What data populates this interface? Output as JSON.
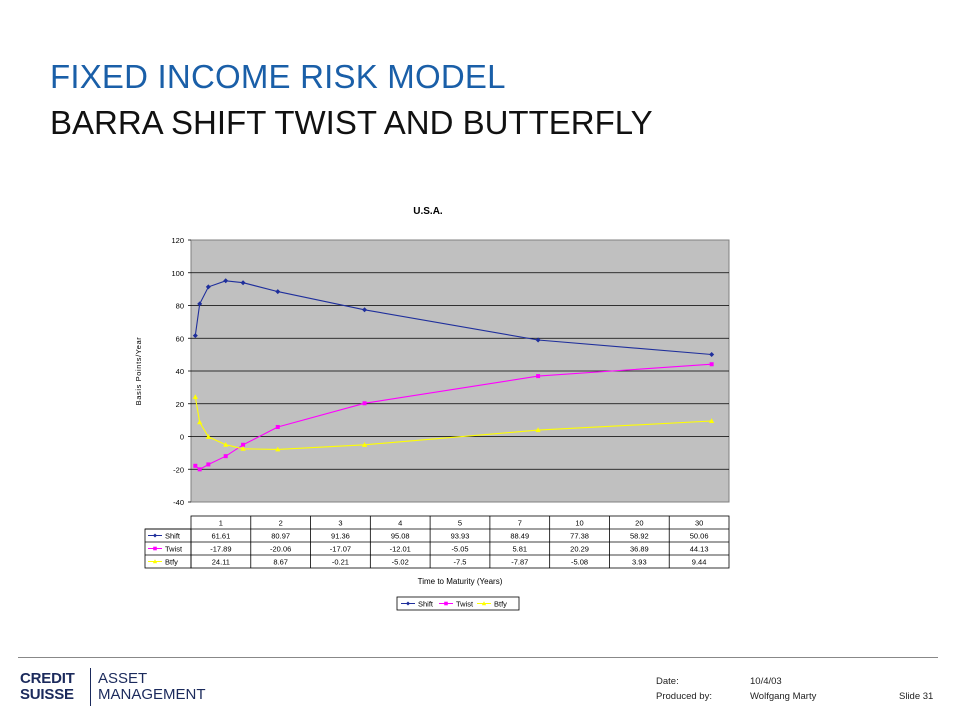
{
  "slide": {
    "title": "FIXED INCOME RISK MODEL",
    "subtitle": "BARRA SHIFT TWIST AND BUTTERFLY"
  },
  "footer": {
    "brand_line1": "CREDIT",
    "brand_line2": "SUISSE",
    "division_line1": "ASSET",
    "division_line2": "MANAGEMENT",
    "date_label": "Date:",
    "date_value": "10/4/03",
    "produced_label": "Produced by:",
    "produced_value": "Wolfgang Marty",
    "slide_number": "Slide 31"
  },
  "chart_data": {
    "type": "line",
    "title": "U.S.A.",
    "xlabel": "Time to Maturity (Years)",
    "ylabel": "Basis Points/Year",
    "categories": [
      "1",
      "2",
      "3",
      "4",
      "5",
      "7",
      "10",
      "20",
      "30"
    ],
    "x": [
      0.25,
      0.5,
      1,
      2,
      3,
      5,
      10,
      20,
      30
    ],
    "ylim": [
      -40,
      120
    ],
    "yticks": [
      -40,
      -20,
      0,
      20,
      40,
      60,
      80,
      100,
      120
    ],
    "grid": true,
    "legend_position": "bottom",
    "series": [
      {
        "name": "Shift",
        "color": "#1f2f9c",
        "marker": "diamond",
        "values": [
          61.61,
          80.97,
          91.36,
          95.08,
          93.93,
          88.49,
          77.38,
          58.92,
          50.06
        ]
      },
      {
        "name": "Twist",
        "color": "#ff00ff",
        "marker": "square",
        "values": [
          -17.89,
          -20.06,
          -17.07,
          -12.01,
          -5.05,
          5.81,
          20.29,
          36.89,
          44.13
        ]
      },
      {
        "name": "Btfy",
        "color": "#ffff00",
        "marker": "triangle",
        "values": [
          24.11,
          8.67,
          -0.21,
          -5.02,
          -7.5,
          -7.87,
          -5.08,
          3.93,
          9.44
        ]
      }
    ],
    "table": {
      "rows": [
        {
          "name": "Shift",
          "cells": [
            "61.61",
            "80.97",
            "91.36",
            "95.08",
            "93.93",
            "88.49",
            "77.38",
            "58.92",
            "50.06"
          ]
        },
        {
          "name": "Twist",
          "cells": [
            "-17.89",
            "-20.06",
            "-17.07",
            "-12.01",
            "-5.05",
            "5.81",
            "20.29",
            "36.89",
            "44.13"
          ]
        },
        {
          "name": "Btfy",
          "cells": [
            "24.11",
            "8.67",
            "-0.21",
            "-5.02",
            "-7.5",
            "-7.87",
            "-5.08",
            "3.93",
            "9.44"
          ]
        }
      ]
    }
  }
}
